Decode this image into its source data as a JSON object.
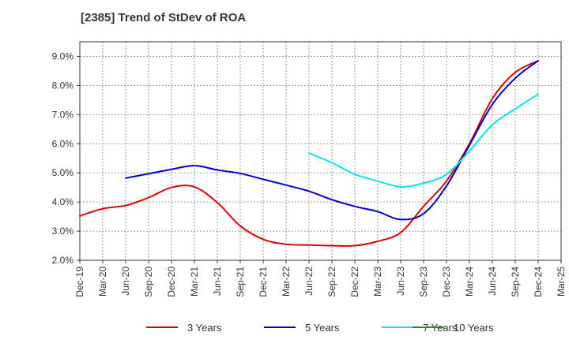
{
  "chart_data": {
    "type": "line",
    "title": "[2385]  Trend of StDev of ROA",
    "xlabel": "",
    "ylabel": "",
    "ylim": [
      2.0,
      9.5
    ],
    "x_ticks": [
      "Dec-19",
      "Mar-20",
      "Jun-20",
      "Sep-20",
      "Dec-20",
      "Mar-21",
      "Jun-21",
      "Sep-21",
      "Dec-21",
      "Mar-22",
      "Jun-22",
      "Sep-22",
      "Dec-22",
      "Mar-23",
      "Jun-23",
      "Sep-23",
      "Dec-23",
      "Mar-24",
      "Jun-24",
      "Sep-24",
      "Dec-24",
      "Mar-25"
    ],
    "y_ticks": [
      2.0,
      3.0,
      4.0,
      5.0,
      6.0,
      7.0,
      8.0,
      9.0
    ],
    "y_tick_labels": [
      "2.0%",
      "3.0%",
      "4.0%",
      "5.0%",
      "6.0%",
      "7.0%",
      "8.0%",
      "9.0%"
    ],
    "grid": true,
    "legend_position": "bottom",
    "series": [
      {
        "name": "3 Years",
        "color": "#dd0000",
        "x": [
          "Dec-19",
          "Mar-20",
          "Jun-20",
          "Sep-20",
          "Dec-20",
          "Mar-21",
          "Jun-21",
          "Sep-21",
          "Dec-21",
          "Mar-22",
          "Jun-22",
          "Sep-22",
          "Dec-22",
          "Mar-23",
          "Jun-23",
          "Sep-23",
          "Dec-23",
          "Mar-24",
          "Jun-24",
          "Sep-24",
          "Dec-24"
        ],
        "values": [
          3.52,
          3.77,
          3.88,
          4.15,
          4.5,
          4.52,
          3.98,
          3.18,
          2.72,
          2.55,
          2.52,
          2.5,
          2.5,
          2.65,
          2.95,
          3.85,
          4.72,
          6.0,
          7.55,
          8.45,
          8.85
        ]
      },
      {
        "name": "5 Years",
        "color": "#0000cc",
        "x": [
          "Jun-20",
          "Sep-20",
          "Dec-20",
          "Mar-21",
          "Jun-21",
          "Sep-21",
          "Dec-21",
          "Mar-22",
          "Jun-22",
          "Sep-22",
          "Dec-22",
          "Mar-23",
          "Jun-23",
          "Sep-23",
          "Dec-23",
          "Mar-24",
          "Jun-24",
          "Sep-24",
          "Dec-24"
        ],
        "values": [
          4.82,
          4.97,
          5.12,
          5.25,
          5.1,
          4.98,
          4.78,
          4.58,
          4.37,
          4.08,
          3.85,
          3.67,
          3.4,
          3.6,
          4.55,
          5.95,
          7.35,
          8.25,
          8.85
        ]
      },
      {
        "name": "7 Years",
        "color": "#00e5ee",
        "x": [
          "Jun-22",
          "Sep-22",
          "Dec-22",
          "Mar-23",
          "Jun-23",
          "Sep-23",
          "Dec-23",
          "Mar-24",
          "Jun-24",
          "Sep-24",
          "Dec-24"
        ],
        "values": [
          5.68,
          5.35,
          4.95,
          4.72,
          4.52,
          4.65,
          4.95,
          5.75,
          6.65,
          7.2,
          7.7
        ]
      },
      {
        "name": "10 Years",
        "color": "#228b22",
        "x": [],
        "values": []
      }
    ]
  }
}
